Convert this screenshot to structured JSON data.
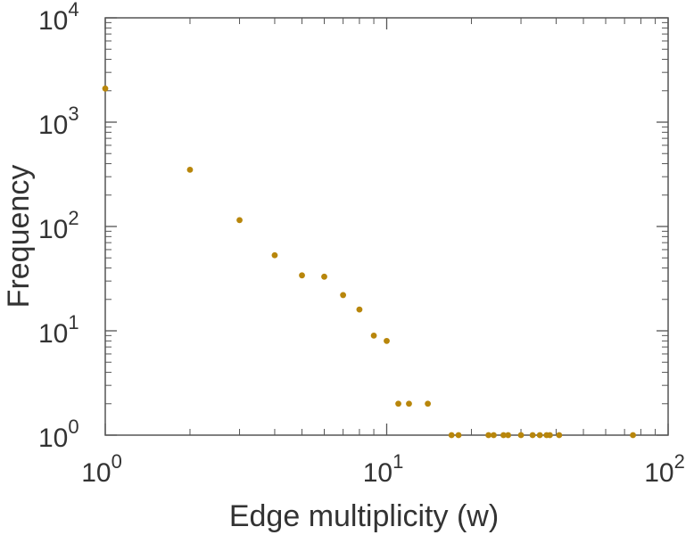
{
  "chart_data": {
    "type": "scatter",
    "title": "",
    "xlabel": "Edge multiplicity (w)",
    "ylabel": "Frequency",
    "xscale": "log",
    "yscale": "log",
    "xlim": [
      1,
      100
    ],
    "ylim": [
      1,
      10000
    ],
    "x_ticks": [
      {
        "value": 1,
        "base": "10",
        "exp": "0"
      },
      {
        "value": 10,
        "base": "10",
        "exp": "1"
      },
      {
        "value": 100,
        "base": "10",
        "exp": "2"
      }
    ],
    "y_ticks": [
      {
        "value": 1,
        "base": "10",
        "exp": "0"
      },
      {
        "value": 10,
        "base": "10",
        "exp": "1"
      },
      {
        "value": 100,
        "base": "10",
        "exp": "2"
      },
      {
        "value": 1000,
        "base": "10",
        "exp": "3"
      },
      {
        "value": 10000,
        "base": "10",
        "exp": "4"
      }
    ],
    "grid": false,
    "marker_color": "#b8860b",
    "series": [
      {
        "x": [
          1,
          2,
          3,
          4,
          5,
          6,
          7,
          8,
          9,
          10,
          11,
          12,
          14,
          17,
          18,
          23,
          24,
          26,
          27,
          30,
          33,
          35,
          37,
          38,
          41,
          75
        ],
        "y": [
          2100,
          350,
          115,
          53,
          34,
          33,
          22,
          16,
          9,
          8,
          2,
          2,
          2,
          1,
          1,
          1,
          1,
          1,
          1,
          1,
          1,
          1,
          1,
          1,
          1,
          1
        ]
      }
    ]
  }
}
